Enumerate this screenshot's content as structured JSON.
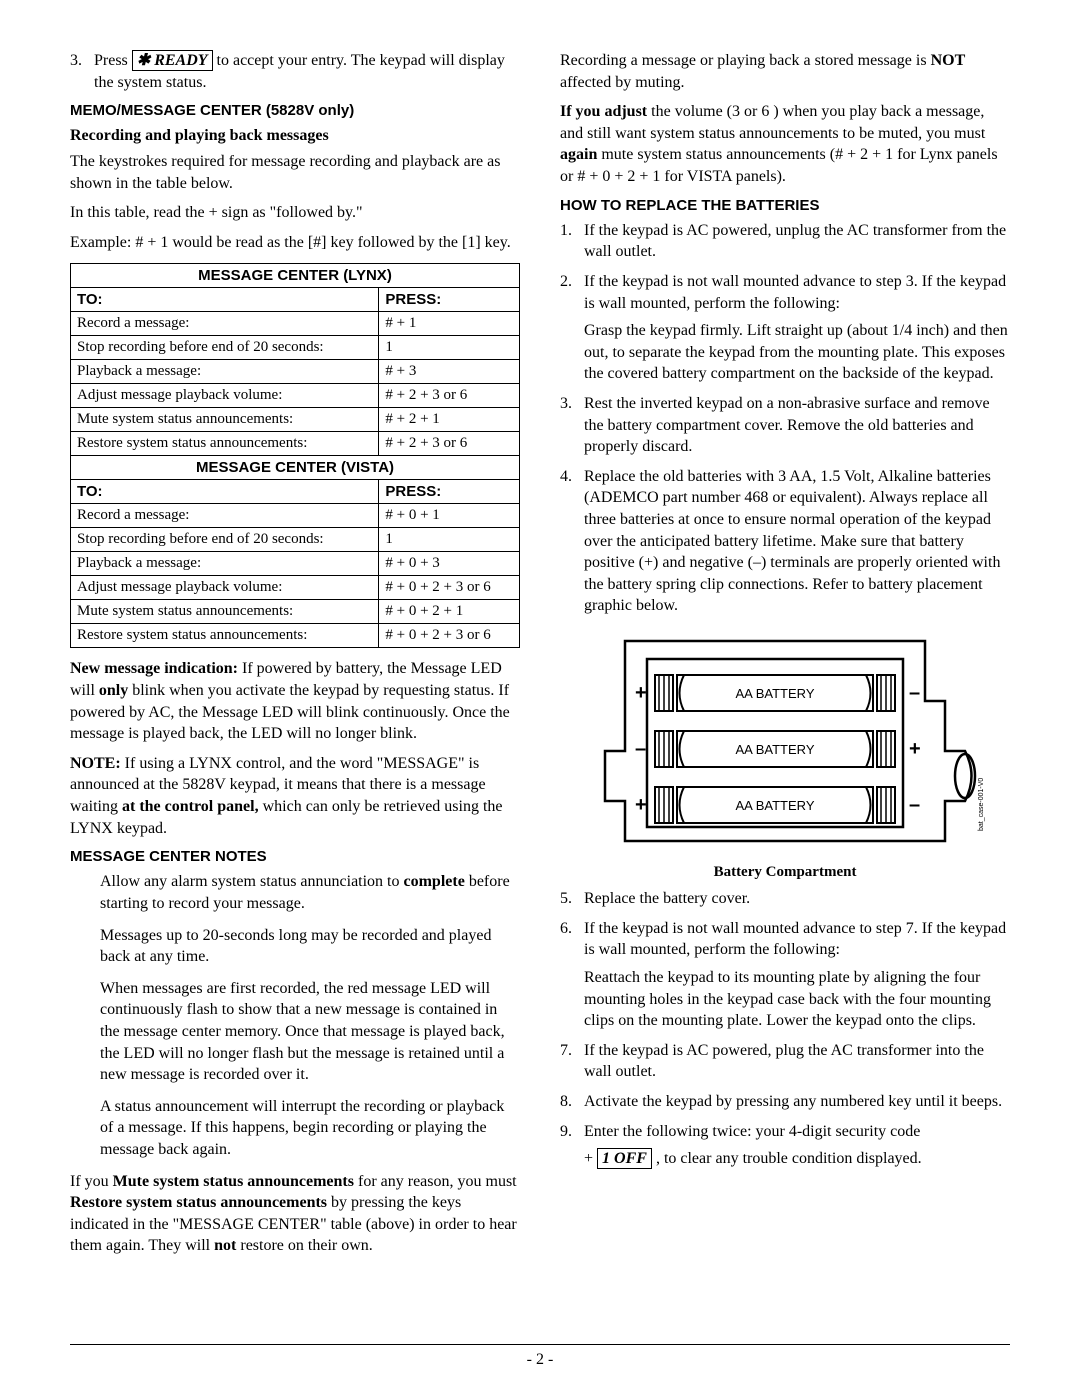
{
  "left": {
    "step3_a": "Press",
    "step3_key": "✱ READY",
    "step3_b": "to accept your entry. The keypad will display the system status.",
    "memo_heading": "MEMO/MESSAGE CENTER (5828V only)",
    "rec_heading": "Recording and playing back messages",
    "p_keystrokes": "The keystrokes required for message recording and playback are as shown in the table below.",
    "p_plus": "In this table, read the + sign as \"followed by.\"",
    "p_example": "Example: # + 1 would be read as the [#] key followed by the [1] key.",
    "table": {
      "title_lynx": "MESSAGE CENTER (LYNX)",
      "title_vista": "MESSAGE CENTER (VISTA)",
      "hdr_to": "TO:",
      "hdr_press": "PRESS:",
      "lynx_rows": [
        {
          "to": "Record a message:",
          "press": "# + 1"
        },
        {
          "to": "Stop recording before end of 20 seconds:",
          "press": "1"
        },
        {
          "to": "Playback a message:",
          "press": "# + 3"
        },
        {
          "to": "Adjust message playback volume:",
          "press": "# + 2 + 3   or 6"
        },
        {
          "to": "Mute system status announcements:",
          "press": "# + 2 + 1"
        },
        {
          "to": "Restore system status announcements:",
          "press": "# + 2 + 3   or 6"
        }
      ],
      "vista_rows": [
        {
          "to": "Record a message:",
          "press": "# + 0 + 1"
        },
        {
          "to": "Stop recording before end of 20 seconds:",
          "press": "1"
        },
        {
          "to": "Playback a message:",
          "press": "# + 0 + 3"
        },
        {
          "to": "Adjust message playback volume:",
          "press": "# + 0 + 2 + 3   or 6"
        },
        {
          "to": "Mute system status announcements:",
          "press": "# + 0 + 2 + 1"
        },
        {
          "to": "Restore system status announcements:",
          "press": "# + 0 + 2 + 3   or 6"
        }
      ]
    },
    "new_msg_bold": "New message indication:",
    "new_msg_text": " If powered by battery, the Message LED will ",
    "new_msg_only": "only",
    "new_msg_text2": " blink when you activate the keypad by requesting status.  If powered by AC, the Message LED will blink continuously.  Once the message is played back, the LED will no longer blink.",
    "note_bold": "NOTE:",
    "note_text1": " If using a LYNX control, and the word \"MESSAGE\" is announced at the 5828V keypad, it means that there is a message waiting ",
    "note_bold2": "at the control panel,",
    "note_text2": " which can only be retrieved using the LYNX keypad.",
    "mc_notes_heading": "MESSAGE CENTER NOTES",
    "notes": {
      "n1a": "Allow any alarm system status annunciation to ",
      "n1b": "complete",
      "n1c": " before starting to record your message.",
      "n2": "Messages up to 20-seconds long may be recorded and played back at any time.",
      "n3": "When messages are first recorded, the red message LED will continuously flash to show that a new message is contained in the message center memory. Once that message is played back, the LED will no longer flash but the message is retained until a new message is recorded over it.",
      "n4": "A status announcement will interrupt the recording or playback of a message. If this happens, begin recording or playing the message back again."
    },
    "mute_p_a": "If you ",
    "mute_p_b": "Mute system status announcements",
    "mute_p_c": " for any reason, you must ",
    "mute_p_d": "Restore system status announcements",
    "mute_p_e": " by pressing the keys indicated in the \"MESSAGE CENTER\" table (above) in order to hear them again. They will ",
    "mute_p_f": "not",
    "mute_p_g": " restore on their own."
  },
  "right": {
    "rec_p_a": "Recording a message or playing back a stored message is ",
    "rec_p_b": "NOT",
    "rec_p_c": " affected by muting.",
    "adj_a": "If you adjust",
    "adj_b": " the volume (3   or 6  ) when you play back a message, and still want system status announcements to be muted, you must ",
    "adj_c": "again",
    "adj_d": " mute system status announcements (# + 2 + 1 for Lynx panels or # + 0 + 2 + 1 for VISTA panels).",
    "batt_heading": "HOW TO REPLACE THE BATTERIES",
    "steps": {
      "s1": "If the keypad is AC powered, unplug the AC transformer from the wall outlet.",
      "s2a": "If the keypad is not wall mounted advance to step 3. If the keypad is wall mounted, perform the following:",
      "s2b": "Grasp the keypad firmly. Lift straight up (about 1/4 inch) and then out, to separate the keypad from the mounting plate. This exposes the covered battery compartment on the backside of the keypad.",
      "s3": "Rest the inverted keypad on a non-abrasive surface and remove the battery compartment cover.  Remove the old batteries and properly discard.",
      "s4": "Replace the old batteries with 3 AA, 1.5 Volt, Alkaline batteries (ADEMCO part number 468 or equivalent).  Always replace all three batteries at once to ensure normal operation of the keypad over the anticipated battery lifetime. Make sure that battery positive (+) and negative (–) terminals are properly oriented with the battery spring clip connections.  Refer to battery placement graphic below.",
      "s5": "Replace the battery cover.",
      "s6a": "If the keypad is not wall mounted advance to step 7. If the keypad is wall mounted, perform the following:",
      "s6b": "Reattach the keypad to its mounting plate by aligning the four mounting holes in the keypad case back with the four mounting clips on the mounting plate. Lower the keypad onto the clips.",
      "s7": "If the keypad is AC powered, plug the AC transformer into the wall outlet.",
      "s8": "Activate the keypad by pressing any numbered key until it beeps.",
      "s9a": "Enter the following twice: your 4-digit security code",
      "s9b": "+ ",
      "s9key": "1 OFF",
      "s9c": " , to clear any trouble condition displayed."
    },
    "diagram": {
      "label": "AA BATTERY",
      "caption": "Battery Compartment",
      "sidetext": "bat_case-001-V0",
      "signs": {
        "plus": "+",
        "minus": "–"
      },
      "stroke": "#000000",
      "fill": "#ffffff",
      "font": "Arial, Helvetica, sans-serif"
    }
  },
  "page_num": "- 2 -"
}
